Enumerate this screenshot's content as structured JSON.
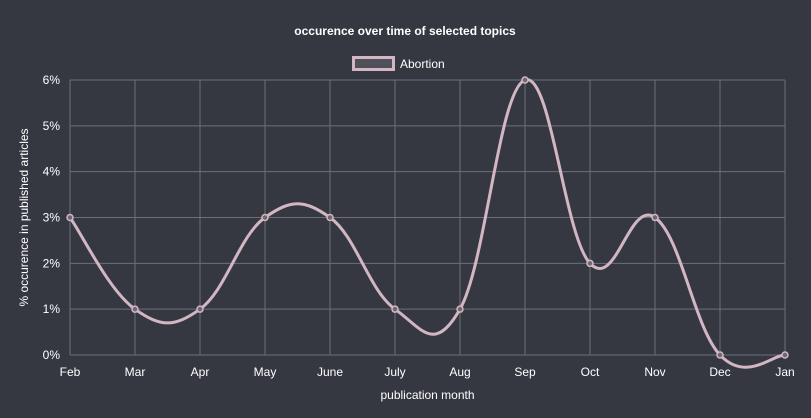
{
  "colors": {
    "background": "#353841",
    "grid": "#6c6f78",
    "series": "#d2b7c2",
    "text": "#ffffff"
  },
  "chart_data": {
    "type": "line",
    "title": "occurence over time of selected topics",
    "xlabel": "publication month",
    "ylabel": "% occurence in published articles",
    "categories": [
      "Feb",
      "Mar",
      "Apr",
      "May",
      "June",
      "July",
      "Aug",
      "Sep",
      "Oct",
      "Nov",
      "Dec",
      "Jan"
    ],
    "series": [
      {
        "name": "Abortion",
        "values": [
          3,
          1,
          1,
          3,
          3,
          1,
          1,
          6,
          2,
          3,
          0,
          0
        ]
      }
    ],
    "ylim": [
      0,
      6
    ],
    "yticks": [
      "0%",
      "1%",
      "2%",
      "3%",
      "4%",
      "5%",
      "6%"
    ],
    "grid": true,
    "legend": "top-center"
  }
}
